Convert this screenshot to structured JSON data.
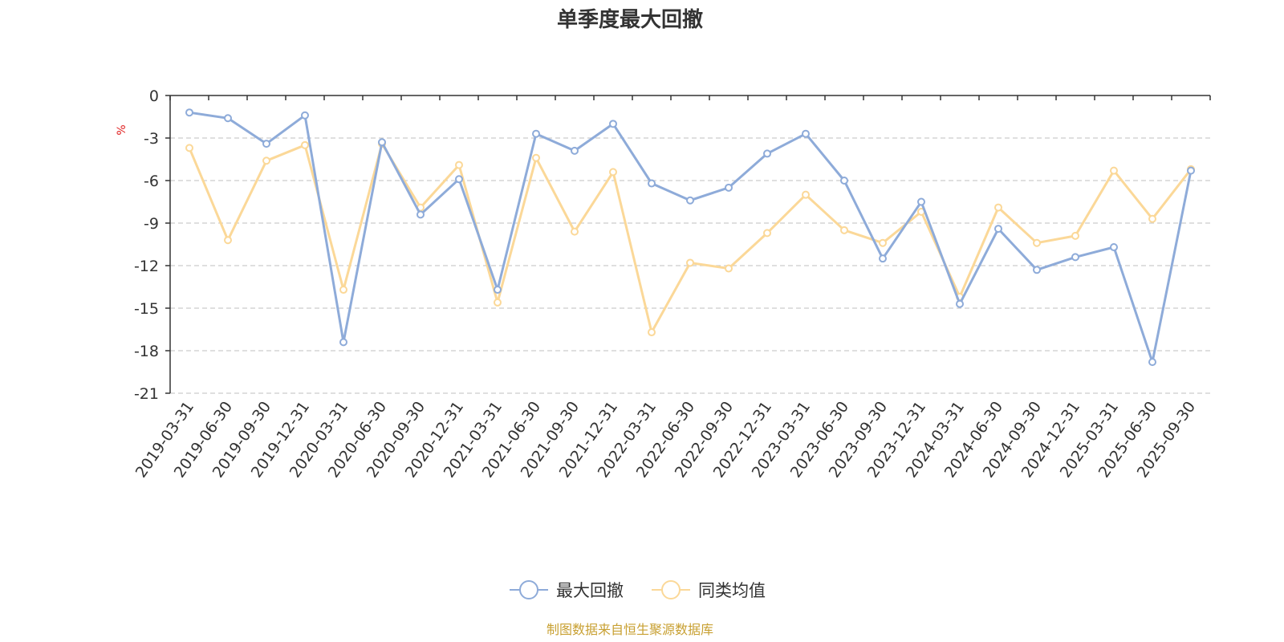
{
  "chart_data": {
    "type": "line",
    "title": "单季度最大回撤",
    "ylabel": "%",
    "xlabel": "",
    "ylim": [
      -21,
      0
    ],
    "yticks": [
      "0",
      "-3",
      "-6",
      "-9",
      "-12",
      "-15",
      "-18",
      "-21"
    ],
    "ytick_values": [
      0,
      -3,
      -6,
      -9,
      -12,
      -15,
      -18,
      -21
    ],
    "grid": "horizontal dashed",
    "legend_position": "bottom-center",
    "categories": [
      "2019-03-31",
      "2019-06-30",
      "2019-09-30",
      "2019-12-31",
      "2020-03-31",
      "2020-06-30",
      "2020-09-30",
      "2020-12-31",
      "2021-03-31",
      "2021-06-30",
      "2021-09-30",
      "2021-12-31",
      "2022-03-31",
      "2022-06-30",
      "2022-09-30",
      "2022-12-31",
      "2023-03-31",
      "2023-06-30",
      "2023-09-30",
      "2023-12-31",
      "2024-03-31",
      "2024-06-30",
      "2024-09-30",
      "2024-12-31",
      "2025-03-31",
      "2025-06-30",
      "2025-09-30"
    ],
    "series": [
      {
        "name": "最大回撤",
        "color": "#8eabd9",
        "values": [
          -1.2,
          -1.6,
          -3.4,
          -1.4,
          -17.4,
          -3.3,
          -8.4,
          -5.9,
          -13.7,
          -2.7,
          -3.9,
          -2.0,
          -6.2,
          -7.4,
          -6.5,
          -4.1,
          -2.7,
          -6.0,
          -11.5,
          -7.5,
          -14.7,
          -9.4,
          -12.3,
          -11.4,
          -10.7,
          -18.8,
          -5.3
        ]
      },
      {
        "name": "同类均值",
        "color": "#fbd898",
        "values": [
          -3.7,
          -10.2,
          -4.6,
          -3.5,
          -13.7,
          -3.4,
          -7.9,
          -4.9,
          -14.6,
          -4.4,
          -9.6,
          -5.4,
          -16.7,
          -11.8,
          -12.2,
          -9.7,
          -7.0,
          -9.5,
          -10.4,
          -8.2,
          -14.2,
          -7.9,
          -10.4,
          -9.9,
          -5.3,
          -8.7,
          -5.2
        ]
      }
    ]
  },
  "source": "制图数据来自恒生聚源数据库"
}
